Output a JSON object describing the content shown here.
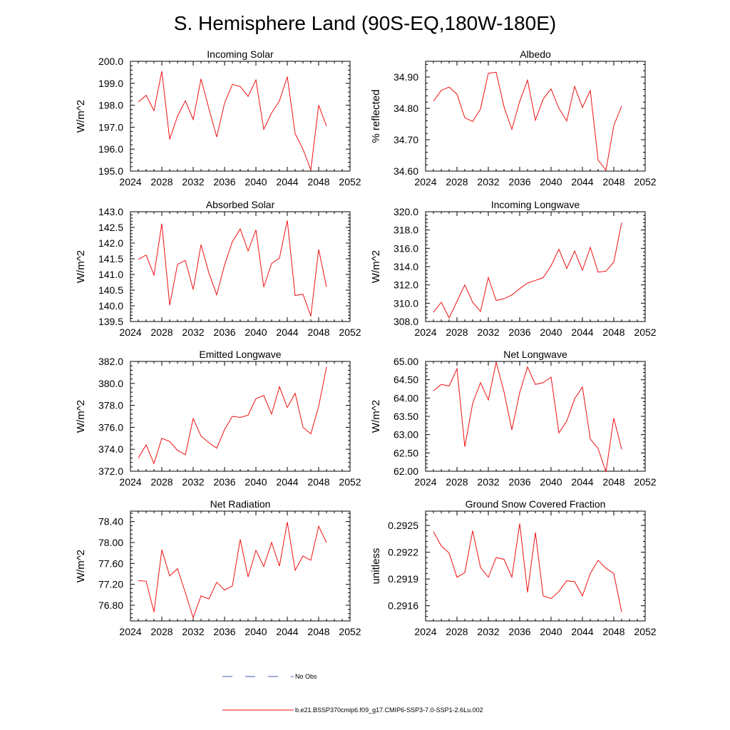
{
  "title": "S. Hemisphere Land (90S-EQ,180W-180E)",
  "legend": {
    "obs_label": "No Obs",
    "obs_color": "#4455aa",
    "model_label": "b.e21.BSSP370cmip6.f09_g17.CMIP6-SSP3-7.0-SSP1-2.6Lu.002",
    "model_color": "#ee1111"
  },
  "chart_data": [
    {
      "type": "line",
      "title": "Incoming Solar",
      "ylabel": "W/m^2",
      "xlim": [
        2024,
        2052
      ],
      "ylim": [
        195.0,
        200.0
      ],
      "xticks": [
        "2024",
        "2028",
        "2032",
        "2036",
        "2040",
        "2044",
        "2048",
        "2052"
      ],
      "yticks": [
        "195.0",
        "196.0",
        "197.0",
        "198.0",
        "199.0",
        "200.0"
      ],
      "series": [
        {
          "x": [
            2025,
            2026,
            2027,
            2028,
            2029,
            2030,
            2031,
            2032,
            2033,
            2034,
            2035,
            2036,
            2037,
            2038,
            2039,
            2040,
            2041,
            2042,
            2043,
            2044,
            2045,
            2046,
            2047,
            2048,
            2049
          ],
          "values": [
            198.15,
            198.45,
            197.75,
            199.55,
            196.45,
            197.5,
            198.2,
            197.35,
            199.2,
            197.85,
            196.55,
            198.1,
            198.95,
            198.85,
            198.4,
            199.15,
            196.9,
            197.65,
            198.2,
            199.3,
            196.7,
            196.0,
            195.05,
            198.0,
            197.05
          ]
        }
      ]
    },
    {
      "type": "line",
      "title": "Albedo",
      "ylabel": "% reflected",
      "xlim": [
        2024,
        2052
      ],
      "ylim": [
        34.6,
        34.95
      ],
      "xticks": [
        "2024",
        "2028",
        "2032",
        "2036",
        "2040",
        "2044",
        "2048",
        "2052"
      ],
      "yticks": [
        "34.60",
        "34.70",
        "34.80",
        "34.90"
      ],
      "series": [
        {
          "x": [
            2025,
            2026,
            2027,
            2028,
            2029,
            2030,
            2031,
            2032,
            2033,
            2034,
            2035,
            2036,
            2037,
            2038,
            2039,
            2040,
            2041,
            2042,
            2043,
            2044,
            2045,
            2046,
            2047,
            2048,
            2049
          ],
          "values": [
            34.823,
            34.857,
            34.868,
            34.845,
            34.77,
            34.758,
            34.798,
            34.912,
            34.915,
            34.805,
            34.733,
            34.822,
            34.89,
            34.762,
            34.83,
            34.862,
            34.8,
            34.76,
            34.87,
            34.803,
            34.857,
            34.635,
            34.603,
            34.745,
            34.808
          ]
        }
      ]
    },
    {
      "type": "line",
      "title": "Absorbed Solar",
      "ylabel": "W/m^2",
      "xlim": [
        2024,
        2052
      ],
      "ylim": [
        139.5,
        143.0
      ],
      "xticks": [
        "2024",
        "2028",
        "2032",
        "2036",
        "2040",
        "2044",
        "2048",
        "2052"
      ],
      "yticks": [
        "139.5",
        "140.0",
        "140.5",
        "141.0",
        "141.5",
        "142.0",
        "142.5",
        "143.0"
      ],
      "series": [
        {
          "x": [
            2025,
            2026,
            2027,
            2028,
            2029,
            2030,
            2031,
            2032,
            2033,
            2034,
            2035,
            2036,
            2037,
            2038,
            2039,
            2040,
            2041,
            2042,
            2043,
            2044,
            2045,
            2046,
            2047,
            2048,
            2049
          ],
          "values": [
            141.48,
            141.62,
            140.98,
            142.62,
            140.02,
            141.32,
            141.45,
            140.52,
            141.95,
            141.05,
            140.35,
            141.3,
            142.05,
            142.45,
            141.75,
            142.42,
            140.6,
            141.35,
            141.52,
            142.72,
            140.33,
            140.37,
            139.67,
            141.8,
            140.6
          ]
        }
      ]
    },
    {
      "type": "line",
      "title": "Incoming Longwave",
      "ylabel": "W/m^2",
      "xlim": [
        2024,
        2052
      ],
      "ylim": [
        308.0,
        320.0
      ],
      "xticks": [
        "2024",
        "2028",
        "2032",
        "2036",
        "2040",
        "2044",
        "2048",
        "2052"
      ],
      "yticks": [
        "308.0",
        "310.0",
        "312.0",
        "314.0",
        "316.0",
        "318.0",
        "320.0"
      ],
      "series": [
        {
          "x": [
            2025,
            2026,
            2027,
            2028,
            2029,
            2030,
            2031,
            2032,
            2033,
            2034,
            2035,
            2036,
            2037,
            2038,
            2039,
            2040,
            2041,
            2042,
            2043,
            2044,
            2045,
            2046,
            2047,
            2048,
            2049
          ],
          "values": [
            309.0,
            310.1,
            308.4,
            310.2,
            312.0,
            310.1,
            309.1,
            312.8,
            310.3,
            310.5,
            310.9,
            311.6,
            312.2,
            312.5,
            312.8,
            314.1,
            315.9,
            313.8,
            315.7,
            313.6,
            316.1,
            313.4,
            313.5,
            314.5,
            318.8
          ]
        }
      ]
    },
    {
      "type": "line",
      "title": "Emitted Longwave",
      "ylabel": "W/m^2",
      "xlim": [
        2024,
        2052
      ],
      "ylim": [
        372.0,
        382.0
      ],
      "xticks": [
        "2024",
        "2028",
        "2032",
        "2036",
        "2040",
        "2044",
        "2048",
        "2052"
      ],
      "yticks": [
        "372.0",
        "374.0",
        "376.0",
        "378.0",
        "380.0",
        "382.0"
      ],
      "series": [
        {
          "x": [
            2025,
            2026,
            2027,
            2028,
            2029,
            2030,
            2031,
            2032,
            2033,
            2034,
            2035,
            2036,
            2037,
            2038,
            2039,
            2040,
            2041,
            2042,
            2043,
            2044,
            2045,
            2046,
            2047,
            2048,
            2049
          ],
          "values": [
            373.2,
            374.4,
            372.7,
            375.0,
            374.7,
            373.9,
            373.5,
            376.8,
            375.2,
            374.6,
            374.1,
            375.8,
            377.0,
            376.9,
            377.1,
            378.6,
            378.9,
            377.2,
            379.7,
            377.8,
            379.1,
            376.0,
            375.4,
            377.9,
            381.5
          ]
        }
      ]
    },
    {
      "type": "line",
      "title": "Net Longwave",
      "ylabel": "W/m^2",
      "xlim": [
        2024,
        2052
      ],
      "ylim": [
        62.0,
        65.0
      ],
      "xticks": [
        "2024",
        "2028",
        "2032",
        "2036",
        "2040",
        "2044",
        "2048",
        "2052"
      ],
      "yticks": [
        "62.00",
        "62.50",
        "63.00",
        "63.50",
        "64.00",
        "64.50",
        "65.00"
      ],
      "series": [
        {
          "x": [
            2025,
            2026,
            2027,
            2028,
            2029,
            2030,
            2031,
            2032,
            2033,
            2034,
            2035,
            2036,
            2037,
            2038,
            2039,
            2040,
            2041,
            2042,
            2043,
            2044,
            2045,
            2046,
            2047,
            2048,
            2049
          ],
          "values": [
            64.2,
            64.37,
            64.33,
            64.8,
            62.67,
            63.85,
            64.42,
            63.95,
            64.98,
            64.17,
            63.13,
            64.15,
            64.85,
            64.37,
            64.42,
            64.57,
            63.05,
            63.37,
            63.98,
            64.3,
            62.88,
            62.62,
            61.98,
            63.45,
            62.6
          ]
        }
      ]
    },
    {
      "type": "line",
      "title": "Net Radiation",
      "ylabel": "W/m^2",
      "xlim": [
        2024,
        2052
      ],
      "ylim": [
        76.5,
        78.6
      ],
      "xticks": [
        "2024",
        "2028",
        "2032",
        "2036",
        "2040",
        "2044",
        "2048",
        "2052"
      ],
      "yticks": [
        "76.80",
        "77.20",
        "77.60",
        "78.00",
        "78.40"
      ],
      "series": [
        {
          "x": [
            2025,
            2026,
            2027,
            2028,
            2029,
            2030,
            2031,
            2032,
            2033,
            2034,
            2035,
            2036,
            2037,
            2038,
            2039,
            2040,
            2041,
            2042,
            2043,
            2044,
            2045,
            2046,
            2047,
            2048,
            2049
          ],
          "values": [
            77.27,
            77.26,
            76.67,
            77.86,
            77.36,
            77.5,
            77.04,
            76.56,
            76.98,
            76.92,
            77.24,
            77.09,
            77.17,
            78.06,
            77.34,
            77.85,
            77.54,
            78.0,
            77.55,
            78.39,
            77.47,
            77.74,
            77.66,
            78.31,
            78.0
          ]
        }
      ]
    },
    {
      "type": "line",
      "title": "Ground Snow Covered Fraction",
      "ylabel": "unitless",
      "xlim": [
        2024,
        2052
      ],
      "ylim": [
        0.29143,
        0.29266
      ],
      "xticks": [
        "2024",
        "2028",
        "2032",
        "2036",
        "2040",
        "2044",
        "2048",
        "2052"
      ],
      "yticks": [
        "0.2916",
        "0.2919",
        "0.2922",
        "0.2925"
      ],
      "series": [
        {
          "x": [
            2025,
            2026,
            2027,
            2028,
            2029,
            2030,
            2031,
            2032,
            2033,
            2034,
            2035,
            2036,
            2037,
            2038,
            2039,
            2040,
            2041,
            2042,
            2043,
            2044,
            2045,
            2046,
            2047,
            2048,
            2049
          ],
          "values": [
            0.29243,
            0.29227,
            0.29219,
            0.29192,
            0.29197,
            0.29244,
            0.29203,
            0.29192,
            0.29214,
            0.29212,
            0.29192,
            0.29252,
            0.29175,
            0.29242,
            0.29171,
            0.29168,
            0.29176,
            0.29188,
            0.29187,
            0.29171,
            0.29196,
            0.29211,
            0.29202,
            0.29196,
            0.29153
          ]
        }
      ]
    }
  ]
}
